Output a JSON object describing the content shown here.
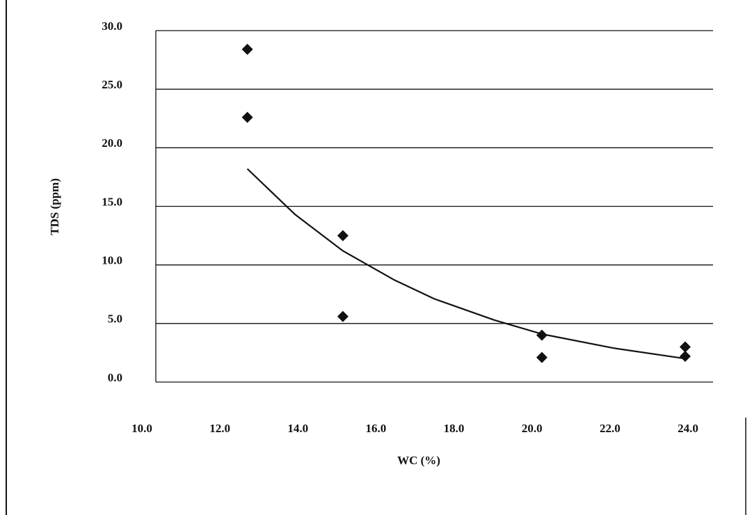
{
  "chart_data": {
    "type": "scatter",
    "x_label": "WC (%)",
    "y_label": "TDS (ppm)",
    "xlim": [
      10,
      24
    ],
    "ylim": [
      0,
      30
    ],
    "xticks": [
      {
        "value": 10,
        "label": "10.0"
      },
      {
        "value": 12,
        "label": "12.0"
      },
      {
        "value": 14,
        "label": "14.0"
      },
      {
        "value": 16,
        "label": "16.0"
      },
      {
        "value": 18,
        "label": "18.0"
      },
      {
        "value": 20,
        "label": "20.0"
      },
      {
        "value": 22,
        "label": "22.0"
      },
      {
        "value": 24,
        "label": "24.0"
      }
    ],
    "yticks": [
      {
        "value": 0,
        "label": "0.0"
      },
      {
        "value": 5,
        "label": "5.0"
      },
      {
        "value": 10,
        "label": "10.0"
      },
      {
        "value": 15,
        "label": "15.0"
      },
      {
        "value": 20,
        "label": "20.0"
      },
      {
        "value": 25,
        "label": "25.0"
      },
      {
        "value": 30,
        "label": "30.0"
      }
    ],
    "grid": true,
    "series": [
      {
        "color": "#111111",
        "marker": "diamond",
        "x": [
          12.3,
          12.3,
          14.7,
          14.7,
          19.7,
          19.7,
          23.3,
          23.3
        ],
        "values": [
          28.4,
          22.6,
          12.5,
          5.6,
          4.0,
          2.1,
          3.0,
          2.2
        ]
      },
      {
        "color": "#111111",
        "trendline": true,
        "x": [
          12.3,
          13.5,
          14.7,
          16,
          17,
          18.5,
          19.7,
          21.5,
          23.3
        ],
        "values": [
          18.2,
          14.3,
          11.2,
          8.7,
          7.1,
          5.3,
          4.1,
          2.9,
          2.0
        ]
      }
    ]
  }
}
